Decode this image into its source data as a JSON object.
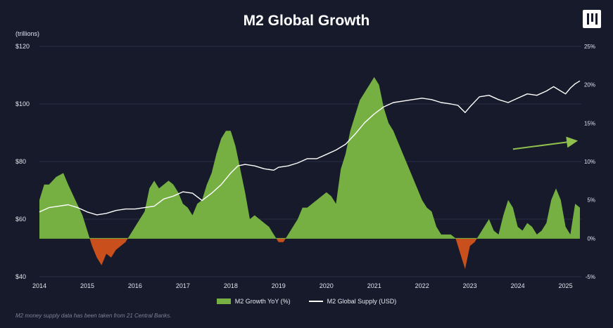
{
  "title": "M2 Global Growth",
  "colors": {
    "background": "#171a2b",
    "positive_fill": "#76b043",
    "negative_fill": "#c94f1c",
    "supply_line": "#ffffff",
    "arrow": "#8fbf4c",
    "grid": "#2a2e44"
  },
  "logo": {
    "icon": "pillar-logo-icon"
  },
  "footnote": "M2 money supply data has been taken from 21 Central Banks.",
  "chart_data": {
    "type": "area",
    "title": "M2 Global Growth",
    "left_axis": {
      "unit_label": "(trillions)",
      "range": [
        40,
        120
      ],
      "ticks": [
        40,
        60,
        80,
        100,
        120
      ],
      "tick_labels": [
        "$40",
        "$60",
        "$80",
        "$100",
        "$120"
      ]
    },
    "right_axis": {
      "range": [
        -5,
        25
      ],
      "ticks": [
        -5,
        0,
        5,
        10,
        15,
        20,
        25
      ],
      "tick_labels": [
        "-5%",
        "0%",
        "5%",
        "10%",
        "15%",
        "20%",
        "25%"
      ]
    },
    "x_axis": {
      "range": [
        2014,
        2025.33
      ],
      "ticks": [
        2014,
        2015,
        2016,
        2017,
        2018,
        2019,
        2020,
        2021,
        2022,
        2023,
        2024,
        2025
      ],
      "tick_labels": [
        "2014",
        "2015",
        "2016",
        "2017",
        "2018",
        "2019",
        "2020",
        "2021",
        "2022",
        "2023",
        "2024",
        "2025"
      ]
    },
    "grid": true,
    "legend_position": "bottom",
    "series": [
      {
        "name": "M2 Growth YoY (%)",
        "type": "area",
        "axis": "right",
        "x": [
          2014.0,
          2014.1,
          2014.2,
          2014.35,
          2014.5,
          2014.6,
          2014.75,
          2014.9,
          2015.0,
          2015.1,
          2015.2,
          2015.3,
          2015.4,
          2015.5,
          2015.6,
          2015.7,
          2015.8,
          2015.9,
          2016.0,
          2016.1,
          2016.2,
          2016.3,
          2016.4,
          2016.5,
          2016.6,
          2016.7,
          2016.8,
          2016.9,
          2017.0,
          2017.1,
          2017.2,
          2017.3,
          2017.4,
          2017.5,
          2017.6,
          2017.7,
          2017.8,
          2017.9,
          2018.0,
          2018.1,
          2018.2,
          2018.3,
          2018.4,
          2018.5,
          2018.6,
          2018.7,
          2018.8,
          2018.9,
          2019.0,
          2019.1,
          2019.2,
          2019.3,
          2019.4,
          2019.5,
          2019.6,
          2019.7,
          2019.8,
          2019.9,
          2020.0,
          2020.1,
          2020.2,
          2020.3,
          2020.4,
          2020.5,
          2020.6,
          2020.7,
          2020.8,
          2020.9,
          2021.0,
          2021.1,
          2021.2,
          2021.3,
          2021.4,
          2021.5,
          2021.6,
          2021.7,
          2021.8,
          2021.9,
          2022.0,
          2022.1,
          2022.2,
          2022.3,
          2022.4,
          2022.5,
          2022.6,
          2022.7,
          2022.8,
          2022.9,
          2023.0,
          2023.1,
          2023.2,
          2023.3,
          2023.4,
          2023.5,
          2023.6,
          2023.7,
          2023.8,
          2023.9,
          2024.0,
          2024.1,
          2024.2,
          2024.3,
          2024.4,
          2024.5,
          2024.6,
          2024.7,
          2024.8,
          2024.9,
          2025.0,
          2025.1,
          2025.2,
          2025.3
        ],
        "values": [
          5.0,
          7.0,
          7.0,
          8.0,
          8.5,
          7.0,
          5.0,
          3.0,
          1.0,
          -1.0,
          -2.5,
          -3.5,
          -2.0,
          -2.5,
          -1.5,
          -1.0,
          -0.5,
          0.5,
          1.5,
          2.5,
          3.5,
          6.5,
          7.5,
          6.5,
          7.0,
          7.5,
          7.0,
          6.0,
          4.5,
          4.0,
          3.0,
          4.5,
          5.0,
          7.0,
          8.5,
          11.0,
          13.0,
          14.0,
          14.0,
          12.0,
          9.0,
          6.0,
          2.5,
          3.0,
          2.5,
          2.0,
          1.5,
          0.5,
          -0.5,
          -0.5,
          0.5,
          1.5,
          2.5,
          4.0,
          4.0,
          4.5,
          5.0,
          5.5,
          6.0,
          5.5,
          4.5,
          9.0,
          11.0,
          14.0,
          16.0,
          18.0,
          19.0,
          20.0,
          21.0,
          20.0,
          17.0,
          15.0,
          14.0,
          12.5,
          11.0,
          9.5,
          8.0,
          6.5,
          5.0,
          4.0,
          3.5,
          1.5,
          0.5,
          0.5,
          0.5,
          0.0,
          -2.0,
          -4.0,
          -1.0,
          -0.5,
          0.5,
          1.5,
          2.5,
          1.0,
          0.5,
          3.0,
          5.0,
          4.0,
          1.5,
          1.0,
          2.0,
          1.5,
          0.5,
          1.0,
          2.0,
          5.0,
          6.5,
          5.0,
          1.5,
          0.5,
          4.5,
          4.0
        ]
      },
      {
        "name": "M2 Global Supply (USD)",
        "type": "line",
        "axis": "left",
        "x": [
          2014.0,
          2014.2,
          2014.4,
          2014.6,
          2014.8,
          2015.0,
          2015.2,
          2015.4,
          2015.6,
          2015.8,
          2016.0,
          2016.2,
          2016.4,
          2016.6,
          2016.8,
          2017.0,
          2017.2,
          2017.4,
          2017.6,
          2017.8,
          2018.0,
          2018.15,
          2018.3,
          2018.5,
          2018.7,
          2018.9,
          2019.0,
          2019.2,
          2019.4,
          2019.6,
          2019.8,
          2020.0,
          2020.2,
          2020.4,
          2020.6,
          2020.8,
          2021.0,
          2021.2,
          2021.4,
          2021.6,
          2021.8,
          2022.0,
          2022.2,
          2022.4,
          2022.6,
          2022.75,
          2022.9,
          2023.0,
          2023.2,
          2023.4,
          2023.6,
          2023.8,
          2024.0,
          2024.2,
          2024.4,
          2024.6,
          2024.75,
          2024.9,
          2025.0,
          2025.1,
          2025.2,
          2025.3
        ],
        "values": [
          62.5,
          64.0,
          64.5,
          65.0,
          64.0,
          62.5,
          61.5,
          62.0,
          63.0,
          63.5,
          63.5,
          64.0,
          64.5,
          67.0,
          68.0,
          69.5,
          69.0,
          66.5,
          69.0,
          72.0,
          76.0,
          78.5,
          79.0,
          78.5,
          77.5,
          77.0,
          78.0,
          78.5,
          79.5,
          81.0,
          81.0,
          82.5,
          84.0,
          86.0,
          89.5,
          93.5,
          96.5,
          99.0,
          100.5,
          101.0,
          101.5,
          102.0,
          101.5,
          100.5,
          100.0,
          99.5,
          97.0,
          99.0,
          102.5,
          103.0,
          101.5,
          100.5,
          102.0,
          103.5,
          103.0,
          104.5,
          106.0,
          104.5,
          103.5,
          105.5,
          107.0,
          108.0
        ]
      }
    ],
    "annotations": [
      {
        "type": "arrow",
        "description": "upward trend arrow",
        "from": {
          "x": 2023.9,
          "y": 84.3
        },
        "to": {
          "x": 2025.2,
          "y": 87.1
        }
      }
    ]
  }
}
